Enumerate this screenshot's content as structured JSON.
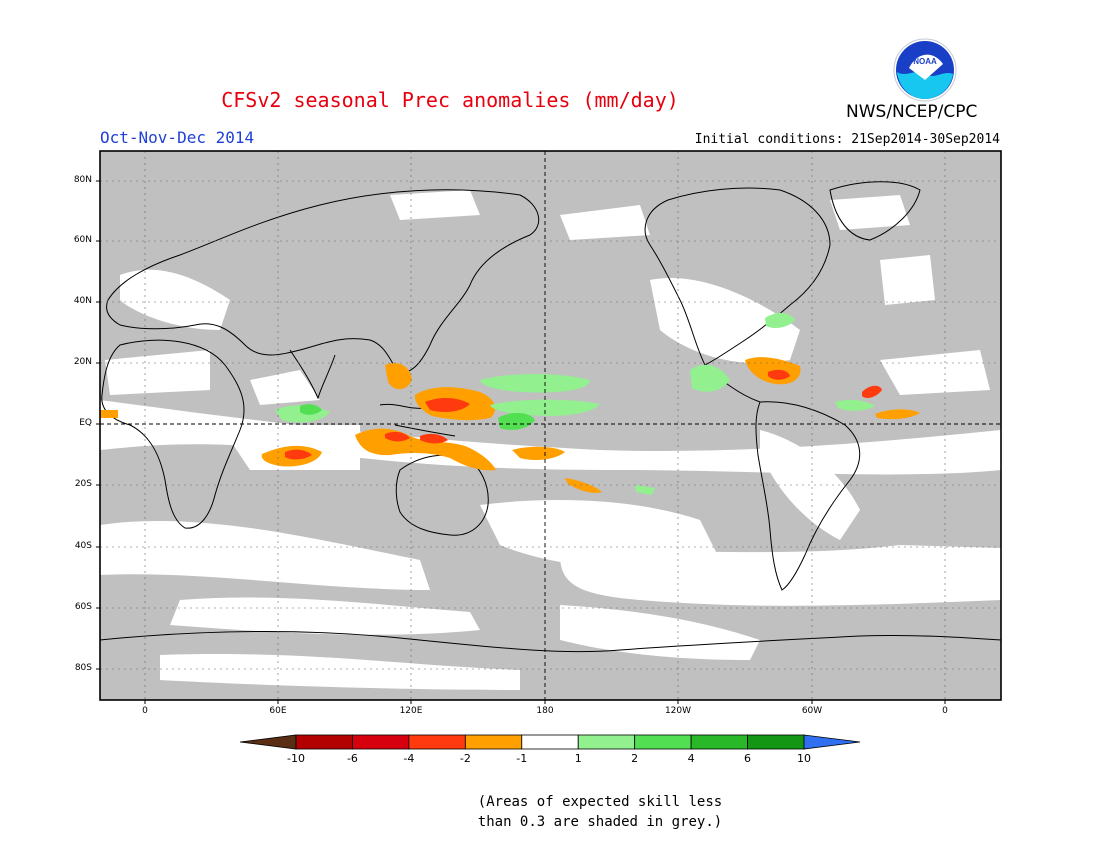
{
  "title": "CFSv2 seasonal Prec anomalies (mm/day)",
  "season": "Oct-Nov-Dec 2014",
  "initial_conditions": "Initial conditions: 21Sep2014-30Sep2014",
  "agency": "NWS/NCEP/CPC",
  "logo_text": "NOAA",
  "colors": {
    "title": "#e8000f",
    "season": "#2040d8",
    "land_grey": "#c0c0c0",
    "ocean": "#ffffff",
    "logo_blue": "#1a3fc7",
    "logo_cyan": "#18c7f0"
  },
  "lat_labels": [
    "80N",
    "60N",
    "40N",
    "20N",
    "EQ",
    "20S",
    "40S",
    "60S",
    "80S"
  ],
  "lon_labels": [
    "0",
    "60E",
    "120E",
    "180",
    "120W",
    "60W",
    "0"
  ],
  "colorbar": {
    "colors": [
      "#5a2e12",
      "#b30000",
      "#d7000f",
      "#ff3a0f",
      "#ff9f00",
      "#ffffff",
      "#92f08f",
      "#52e052",
      "#28b828",
      "#139613",
      "#2f6ff0"
    ],
    "labels": [
      "-10",
      "-6",
      "-4",
      "-2",
      "-1",
      "1",
      "2",
      "4",
      "6",
      "10"
    ]
  },
  "note_lines": [
    "(Areas of expected skill less",
    "than 0.3 are shaded in grey.)"
  ]
}
